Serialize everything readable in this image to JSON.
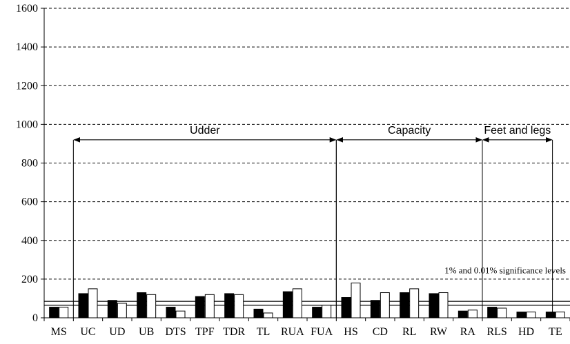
{
  "chart_data": {
    "type": "bar",
    "title": "",
    "xlabel": "",
    "ylabel": "",
    "ylim": [
      0,
      1600
    ],
    "yticks": [
      "0",
      "200",
      "400",
      "600",
      "800",
      "1000",
      "1200",
      "1400",
      "1600"
    ],
    "grid": "dashed horizontal",
    "categories": [
      "MS",
      "UC",
      "UD",
      "UB",
      "DTS",
      "TPF",
      "TDR",
      "TL",
      "RUA",
      "FUA",
      "HS",
      "CD",
      "RL",
      "RW",
      "RA",
      "RLS",
      "HD",
      "TE"
    ],
    "series": [
      {
        "fill": "#000000",
        "values": [
          55,
          125,
          90,
          130,
          55,
          110,
          125,
          45,
          135,
          55,
          105,
          90,
          130,
          125,
          35,
          55,
          30,
          30
        ]
      },
      {
        "fill": "#ffffff",
        "values": [
          55,
          150,
          75,
          120,
          35,
          120,
          120,
          25,
          150,
          65,
          180,
          130,
          150,
          130,
          40,
          50,
          30,
          30
        ]
      }
    ],
    "significance_lines": [
      65,
      85
    ],
    "significance_label": "1% and 0.01% significance levels",
    "groups": [
      {
        "label": "Udder",
        "from": "UC",
        "to": "HS",
        "y": 920
      },
      {
        "label": "Capacity",
        "from": "HS",
        "to": "RLS",
        "y": 920
      },
      {
        "label": "Feet and legs",
        "from": "RLS",
        "to": "TE",
        "y": 920
      }
    ]
  }
}
